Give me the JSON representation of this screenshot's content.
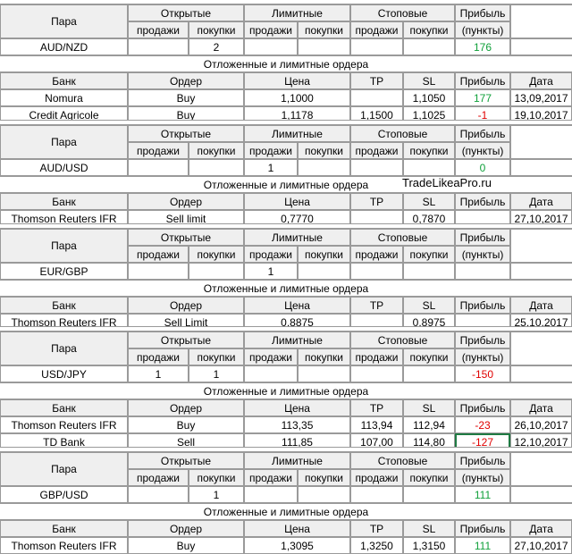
{
  "headers": {
    "pair": "Пара",
    "open": "Открытые",
    "limit": "Лимитные",
    "stop": "Стоповые",
    "profit": "Прибыль",
    "sales": "продажи",
    "buys": "покупки",
    "points": "(пункты)",
    "pending_title": "Отложенные и лимитные ордера",
    "bank": "Банк",
    "order": "Ордер",
    "price": "Цена",
    "tp": "TP",
    "sl": "SL",
    "date": "Дата"
  },
  "watermark": "TradeLikeaPro.ru",
  "colors": {
    "grid": "#9a9a9a",
    "header_bg": "#efefef",
    "positive": "#10a03a",
    "negative": "#e00000"
  },
  "blocks": [
    {
      "pair": "AUD/NZD",
      "open_sales": "",
      "open_buys": "2",
      "limit_sales": "",
      "limit_buys": "",
      "stop_sales": "",
      "stop_buys": "",
      "profit": "176",
      "profit_sign": "positive",
      "orders": [
        {
          "bank": "Nomura",
          "order": "Buy",
          "price": "1,1000",
          "tp": "",
          "sl": "1,1050",
          "profit": "177",
          "profit_sign": "positive",
          "date": "13,09,2017"
        },
        {
          "bank": "Credit Agricole",
          "order": "Buy",
          "price": "1,1178",
          "tp": "1,1500",
          "sl": "1,1025",
          "profit": "-1",
          "profit_sign": "negative",
          "date": "19,10,2017"
        }
      ]
    },
    {
      "pair": "AUD/USD",
      "open_sales": "",
      "open_buys": "",
      "limit_sales": "1",
      "limit_buys": "",
      "stop_sales": "",
      "stop_buys": "",
      "profit": "0",
      "profit_sign": "positive",
      "orders": [
        {
          "bank": "Thomson Reuters IFR",
          "order": "Sell limit",
          "price": "0,7770",
          "tp": "",
          "sl": "0,7870",
          "profit": "",
          "profit_sign": "",
          "date": "27,10,2017"
        }
      ]
    },
    {
      "pair": "EUR/GBP",
      "open_sales": "",
      "open_buys": "",
      "limit_sales": "1",
      "limit_buys": "",
      "stop_sales": "",
      "stop_buys": "",
      "profit": "",
      "profit_sign": "",
      "orders": [
        {
          "bank": "Thomson Reuters IFR",
          "order": "Sell Limit",
          "price": "0,8875",
          "tp": "",
          "sl": "0,8975",
          "profit": "",
          "profit_sign": "",
          "date": "25,10,2017"
        }
      ]
    },
    {
      "pair": "USD/JPY",
      "open_sales": "1",
      "open_buys": "1",
      "limit_sales": "",
      "limit_buys": "",
      "stop_sales": "",
      "stop_buys": "",
      "profit": "-150",
      "profit_sign": "negative",
      "orders": [
        {
          "bank": "Thomson Reuters IFR",
          "order": "Buy",
          "price": "113,35",
          "tp": "113,94",
          "sl": "112,94",
          "profit": "-23",
          "profit_sign": "negative",
          "date": "26,10,2017"
        },
        {
          "bank": "TD Bank",
          "order": "Sell",
          "price": "111,85",
          "tp": "107,00",
          "sl": "114,80",
          "profit": "-127",
          "profit_sign": "negative",
          "date": "12,10,2017"
        }
      ]
    },
    {
      "pair": "GBP/USD",
      "open_sales": "",
      "open_buys": "1",
      "limit_sales": "",
      "limit_buys": "",
      "stop_sales": "",
      "stop_buys": "",
      "profit": "111",
      "profit_sign": "positive",
      "orders": [
        {
          "bank": "Thomson Reuters IFR",
          "order": "Buy",
          "price": "1,3095",
          "tp": "1,3250",
          "sl": "1,3150",
          "profit": "111",
          "profit_sign": "positive",
          "date": "27,10,2017"
        }
      ]
    }
  ]
}
